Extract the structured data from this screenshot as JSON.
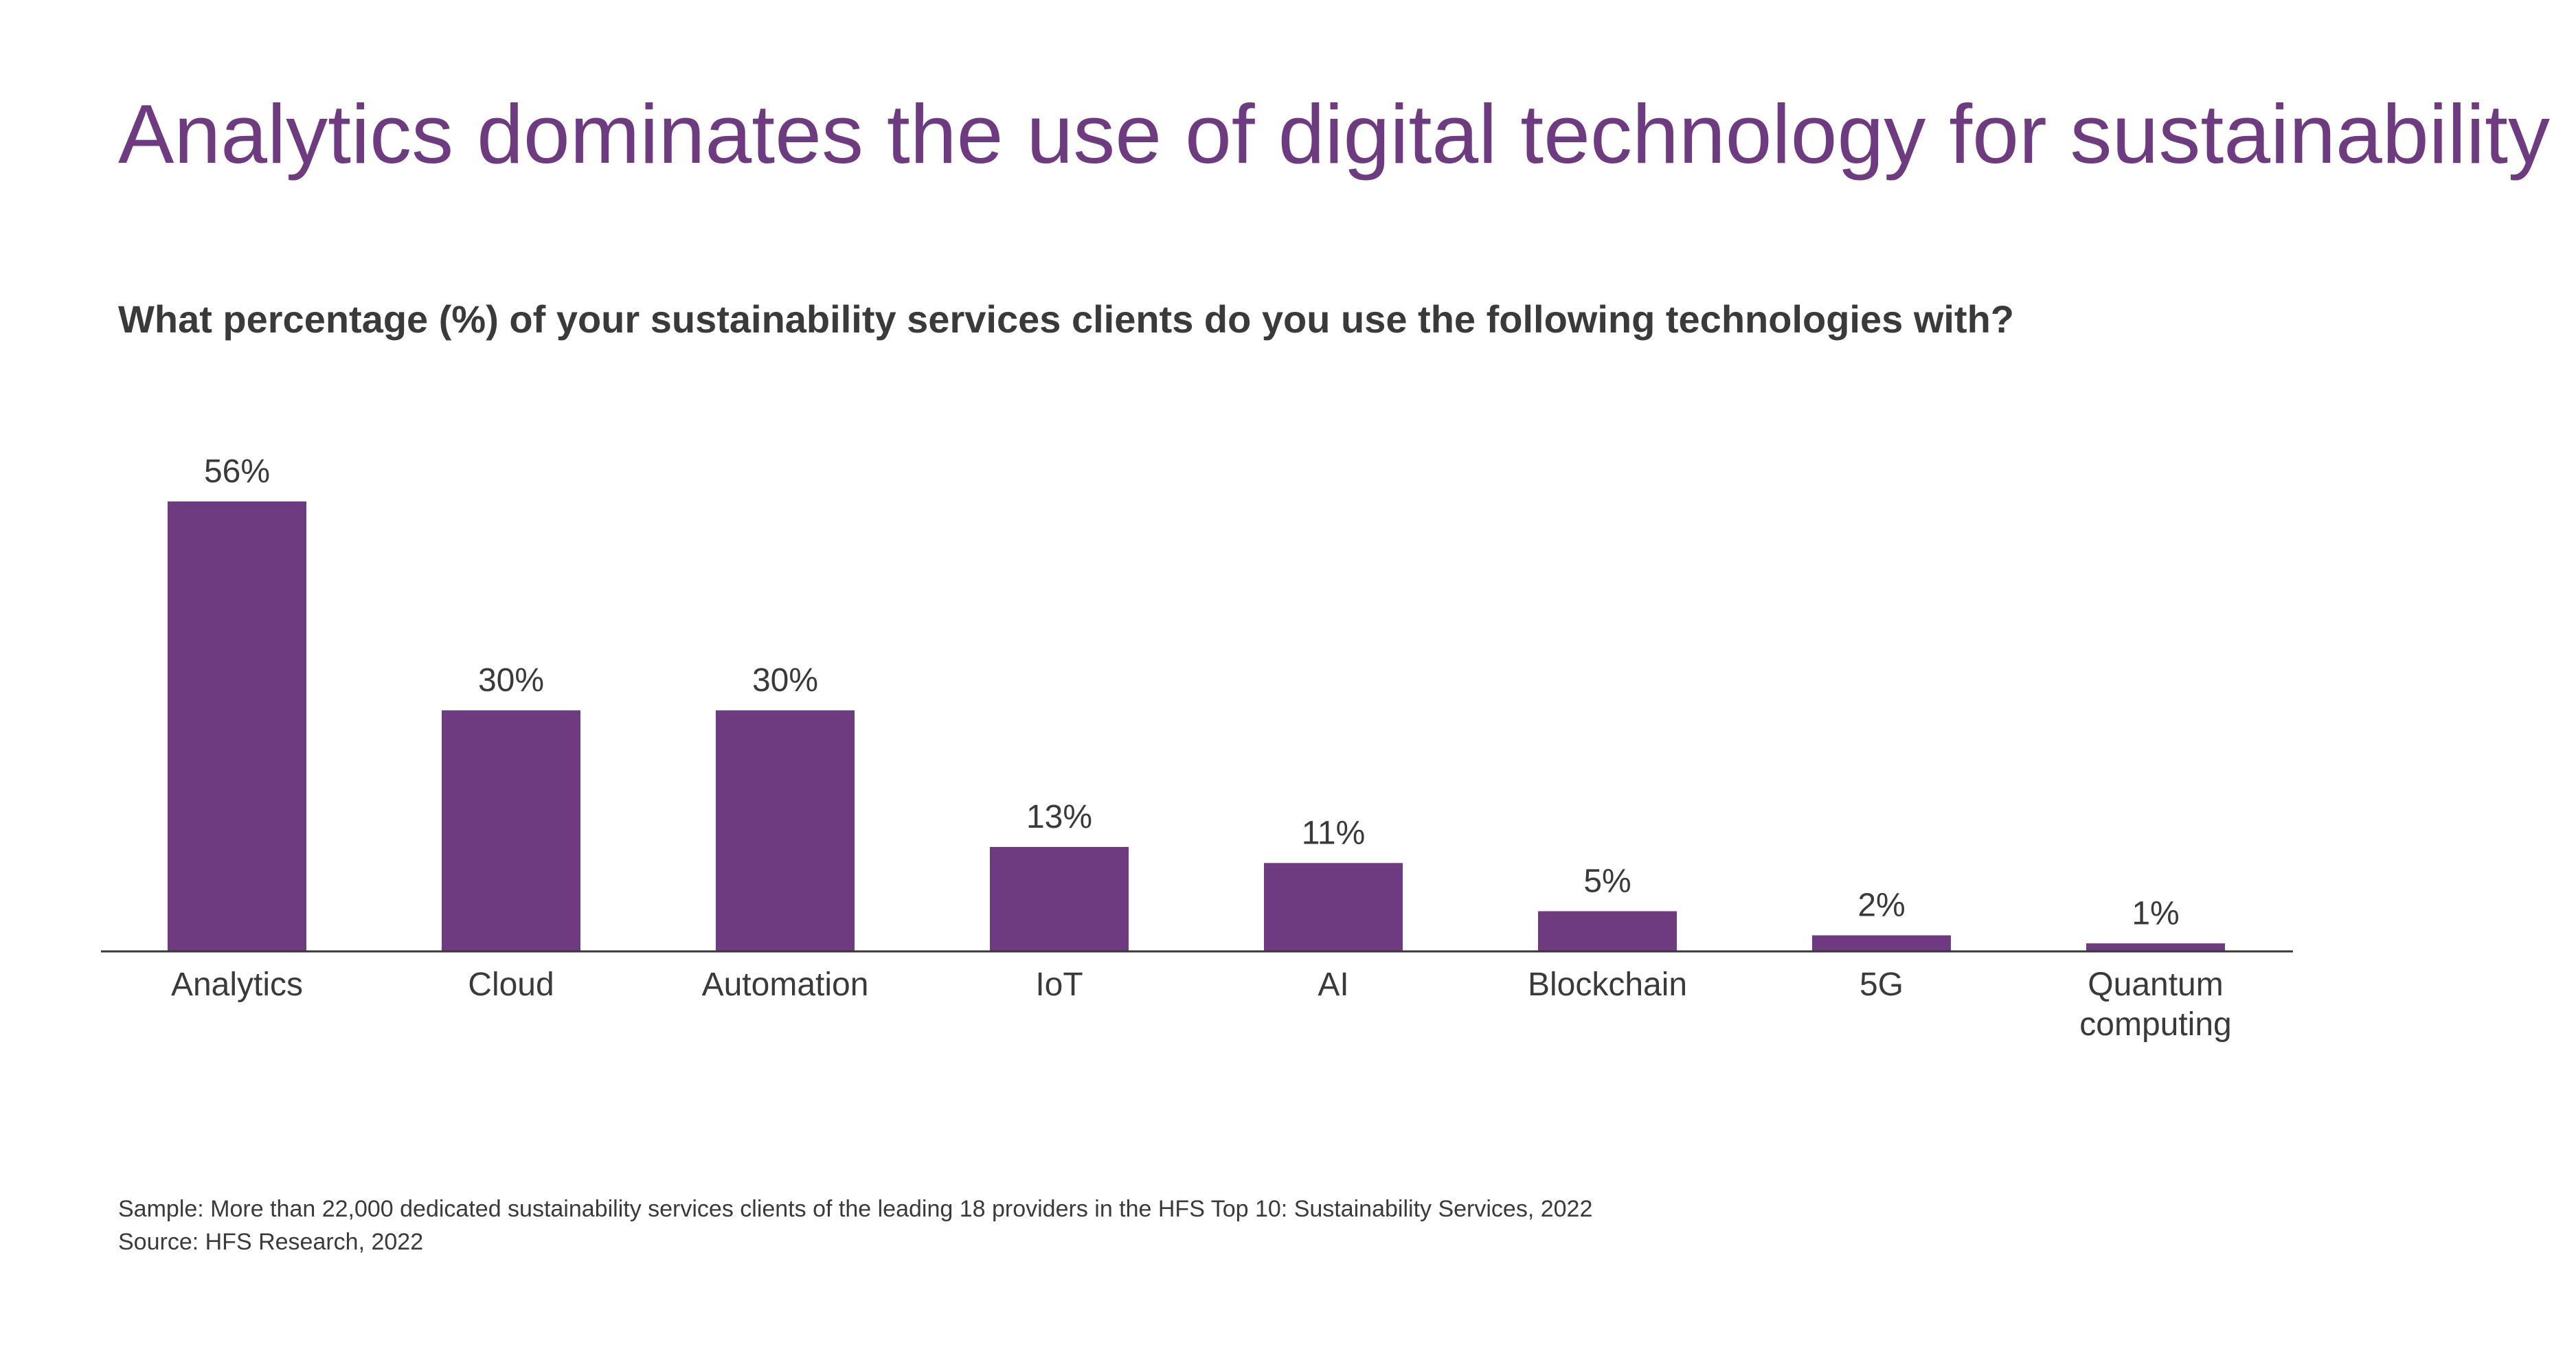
{
  "slide": {
    "title": "Analytics dominates the use of digital technology for sustainability",
    "question": "What percentage (%) of your sustainability services clients do you use the following technologies with?",
    "footnote": {
      "sample": "Sample: More than 22,000 dedicated sustainability services clients of the leading 18 providers in the HFS Top 10: Sustainability Services, 2022",
      "source": "Source: HFS Research, 2022"
    }
  },
  "colors": {
    "title": "#6f3b80",
    "bar": "#6f3b80",
    "text": "#3a3a3a",
    "axis": "#3a3a3a"
  },
  "chart_data": {
    "type": "bar",
    "title": "",
    "xlabel": "",
    "ylabel": "",
    "categories": [
      "Analytics",
      "Cloud",
      "Automation",
      "IoT",
      "AI",
      "Blockchain",
      "5G",
      "Quantum computing"
    ],
    "category_lines": [
      [
        "Analytics"
      ],
      [
        "Cloud"
      ],
      [
        "Automation"
      ],
      [
        "IoT"
      ],
      [
        "AI"
      ],
      [
        "Blockchain"
      ],
      [
        "5G"
      ],
      [
        "Quantum",
        "computing"
      ]
    ],
    "values": [
      56,
      30,
      30,
      13,
      11,
      5,
      2,
      1
    ],
    "value_labels": [
      "56%",
      "30%",
      "30%",
      "13%",
      "11%",
      "5%",
      "2%",
      "1%"
    ],
    "ylim": [
      0,
      56
    ],
    "grid": false,
    "legend": "none",
    "y_axis_shown": false
  }
}
